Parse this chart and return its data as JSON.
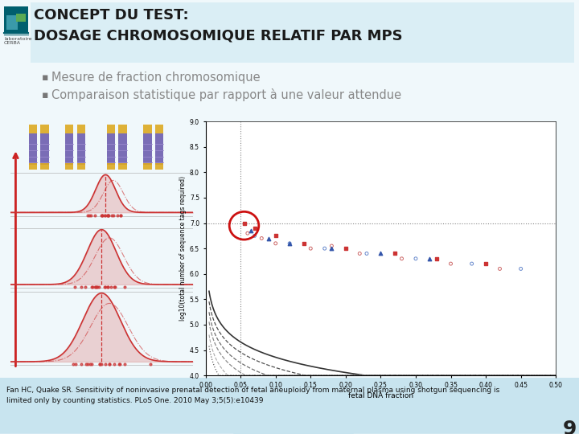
{
  "title_line1": "CONCEPT DU TEST:",
  "title_line2": "DOSAGE CHROMOSOMIQUE RELATIF PAR MPS",
  "bullet1": "Mesure de fraction chromosomique",
  "bullet2": "Comparaison statistique par rapport à une valeur attendue",
  "footer": "Fan HC, Quake SR. Sensitivity of noninvasive prenatal detection of fetal aneuploidy from maternal plasma using shotgun sequencing is\nlimited only by counting statistics. PLoS One. 2010 May 3;5(5):e10439",
  "page_number": "9",
  "bg_color": "#f0f8fb",
  "header_bg_color": "#daeef5",
  "title_color": "#1a1a1a",
  "bullet_color": "#888888",
  "footer_bg_color": "#c8e4ef",
  "teal_dark": "#2a7a8a",
  "teal_mid": "#3a9aaa",
  "logo_teal_dark": "#005f6e",
  "logo_teal_mid": "#3a9aaa",
  "logo_green": "#5aaa55"
}
